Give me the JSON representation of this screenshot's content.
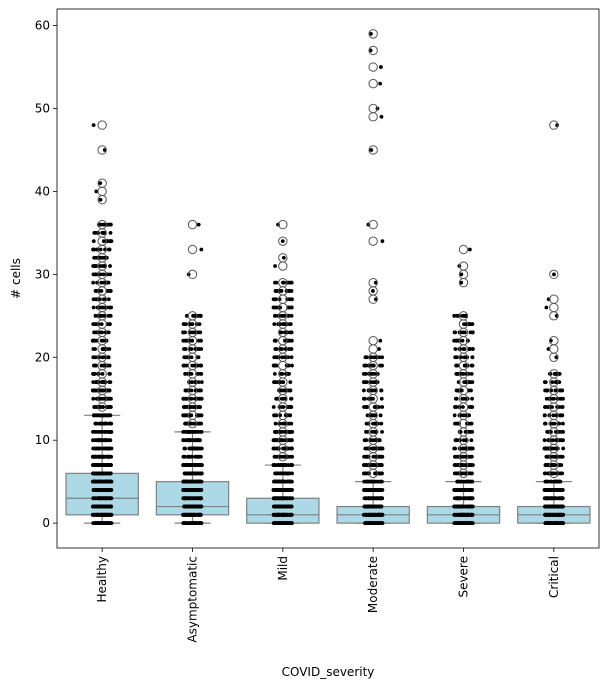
{
  "chart_data": {
    "type": "box",
    "xlabel": "COVID_severity",
    "ylabel": "# cells",
    "ylim": [
      -3,
      62
    ],
    "yticks": [
      0,
      10,
      20,
      30,
      40,
      50,
      60
    ],
    "categories": [
      "Healthy",
      "Asymptomatic",
      "Mild",
      "Moderate",
      "Severe",
      "Critical"
    ],
    "grid": false,
    "legend": "none",
    "box_color": "#add8e6",
    "line_color": "#808080",
    "point_color": "#000000",
    "boxes": [
      {
        "category": "Healthy",
        "whisker_low": 0,
        "q1": 1,
        "median": 3,
        "q3": 6,
        "whisker_high": 13,
        "outliers": [
          14,
          15,
          16,
          17,
          18,
          19,
          20,
          21,
          22,
          23,
          24,
          25,
          26,
          27,
          28,
          29,
          30,
          31,
          32,
          33,
          34,
          35,
          36,
          39,
          40,
          41,
          45,
          48
        ],
        "strip_max": 36,
        "strip_extra": [
          39,
          40,
          41,
          45,
          48
        ]
      },
      {
        "category": "Asymptomatic",
        "whisker_low": 0,
        "q1": 1,
        "median": 2,
        "q3": 5,
        "whisker_high": 11,
        "outliers": [
          12,
          13,
          14,
          15,
          16,
          17,
          18,
          19,
          20,
          21,
          22,
          23,
          24,
          25,
          30,
          33,
          36
        ],
        "strip_max": 25,
        "strip_extra": [
          30,
          33,
          36
        ]
      },
      {
        "category": "Mild",
        "whisker_low": 0,
        "q1": 0,
        "median": 1,
        "q3": 3,
        "whisker_high": 7,
        "outliers": [
          8,
          9,
          10,
          11,
          12,
          13,
          14,
          15,
          16,
          17,
          18,
          19,
          20,
          21,
          22,
          23,
          24,
          25,
          26,
          27,
          28,
          29,
          31,
          32,
          34,
          36
        ],
        "strip_max": 29,
        "strip_extra": [
          31,
          32,
          34,
          36
        ]
      },
      {
        "category": "Moderate",
        "whisker_low": 0,
        "q1": 0,
        "median": 1,
        "q3": 2,
        "whisker_high": 5,
        "outliers": [
          6,
          7,
          8,
          9,
          10,
          11,
          12,
          13,
          14,
          15,
          16,
          17,
          18,
          19,
          20,
          21,
          22,
          27,
          28,
          29,
          34,
          36,
          45,
          49,
          50,
          53,
          55,
          57,
          59
        ],
        "strip_max": 20,
        "strip_extra": [
          21,
          22,
          27,
          28,
          29,
          34,
          36,
          45,
          49,
          50,
          53,
          55,
          57,
          59
        ]
      },
      {
        "category": "Severe",
        "whisker_low": 0,
        "q1": 0,
        "median": 1,
        "q3": 2,
        "whisker_high": 5,
        "outliers": [
          6,
          7,
          8,
          9,
          10,
          11,
          12,
          13,
          14,
          15,
          16,
          17,
          18,
          19,
          20,
          21,
          22,
          23,
          24,
          25,
          29,
          30,
          31,
          33
        ],
        "strip_max": 25,
        "strip_extra": [
          29,
          30,
          31,
          33
        ]
      },
      {
        "category": "Critical",
        "whisker_low": 0,
        "q1": 0,
        "median": 1,
        "q3": 2,
        "whisker_high": 5,
        "outliers": [
          6,
          7,
          8,
          9,
          10,
          11,
          12,
          13,
          14,
          15,
          16,
          17,
          18,
          20,
          21,
          22,
          25,
          26,
          27,
          30,
          48
        ],
        "strip_max": 18,
        "strip_extra": [
          20,
          21,
          22,
          25,
          26,
          27,
          30,
          48
        ]
      }
    ]
  }
}
